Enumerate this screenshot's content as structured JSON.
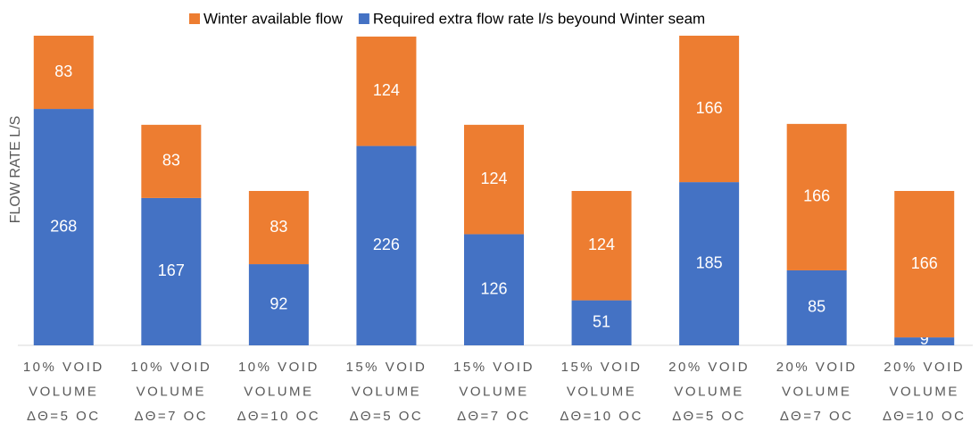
{
  "chart_data": {
    "type": "stacked-bar",
    "y_axis_label": "FLOW RATE L/S",
    "categories": [
      [
        "10% VOID",
        "VOLUME",
        "ΔΘ=5 OC"
      ],
      [
        "10% VOID",
        "VOLUME",
        "ΔΘ=7 OC"
      ],
      [
        "10% VOID",
        "VOLUME",
        "ΔΘ=10 OC"
      ],
      [
        "15% VOID",
        "VOLUME",
        "ΔΘ=5 OC"
      ],
      [
        "15% VOID",
        "VOLUME",
        "ΔΘ=7 OC"
      ],
      [
        "15% VOID",
        "VOLUME",
        "ΔΘ=10 OC"
      ],
      [
        "20% VOID",
        "VOLUME",
        "ΔΘ=5 OC"
      ],
      [
        "20% VOID",
        "VOLUME",
        "ΔΘ=7 OC"
      ],
      [
        "20% VOID",
        "VOLUME",
        "ΔΘ=10 OC"
      ]
    ],
    "series": [
      {
        "name": "Required extra flow rate l/s beyound Winter seam",
        "color": "#4472c4",
        "values": [
          268,
          167,
          92,
          226,
          126,
          51,
          185,
          85,
          9
        ]
      },
      {
        "name": "Winter available flow",
        "color": "#ed7d31",
        "values": [
          83,
          83,
          83,
          124,
          124,
          124,
          166,
          166,
          166
        ]
      }
    ],
    "ylim": [
      0,
      351
    ]
  }
}
